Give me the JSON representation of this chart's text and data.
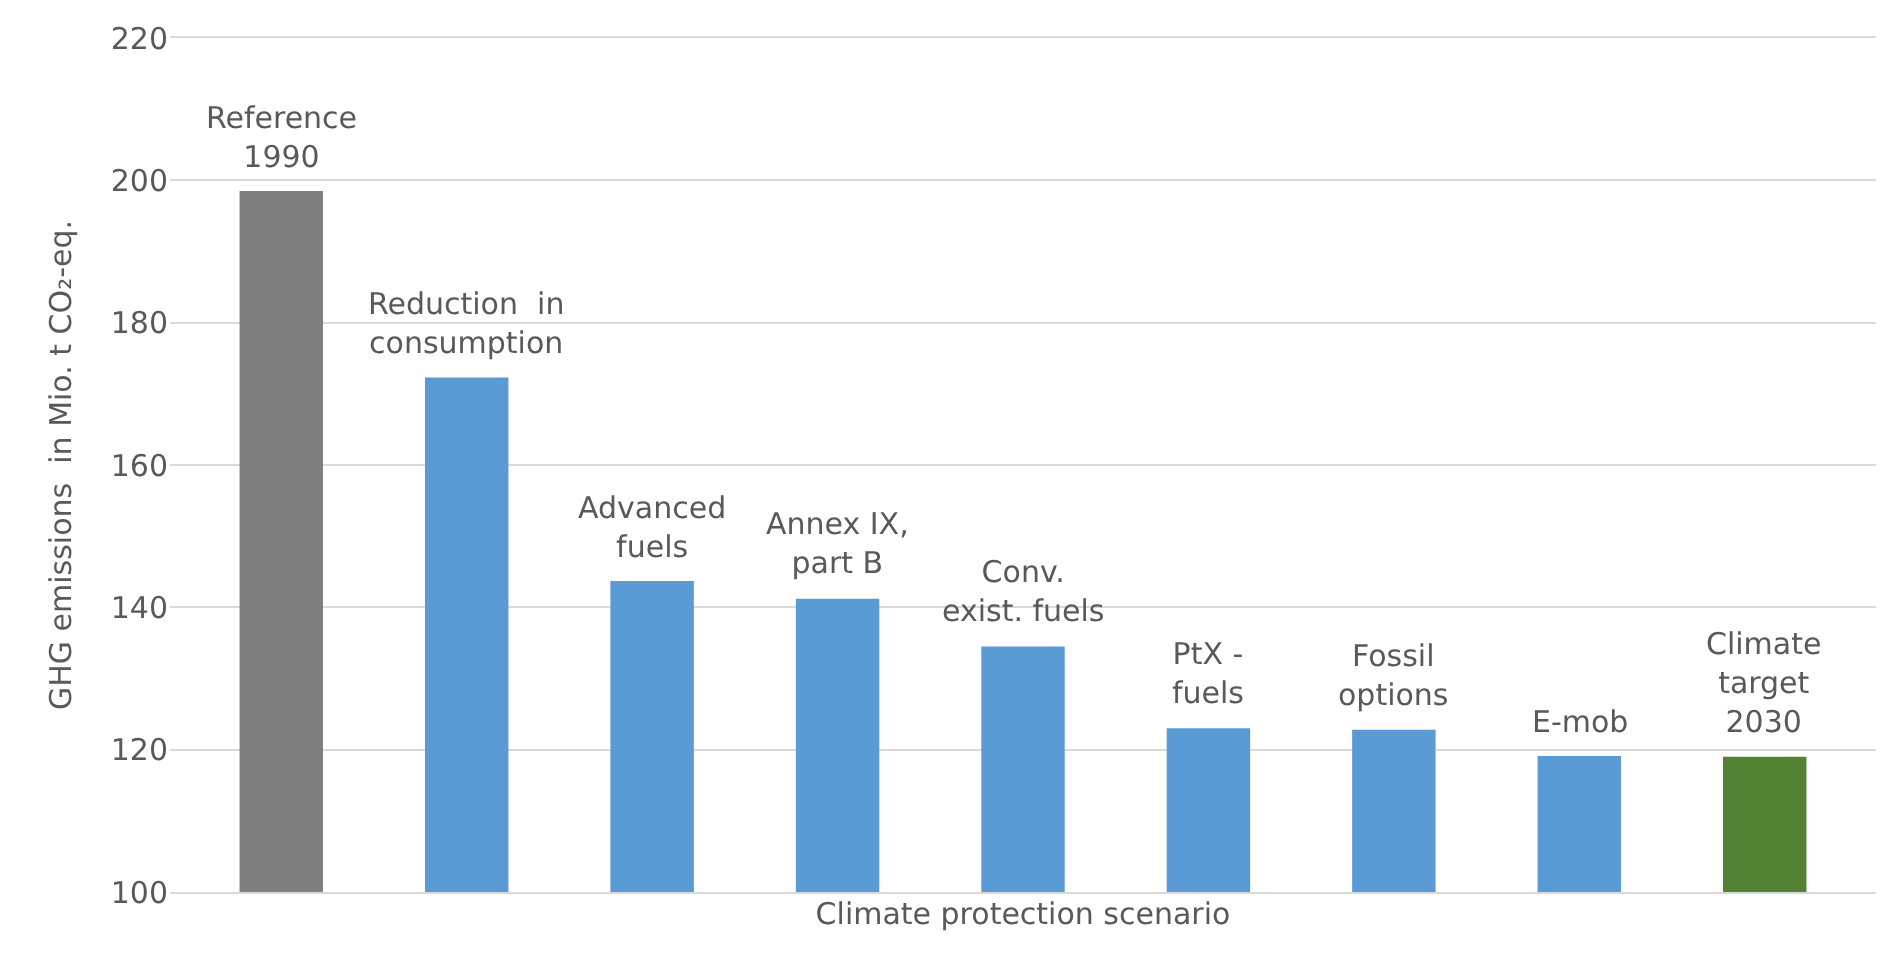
{
  "chart_data": {
    "type": "bar",
    "xlabel": "Climate protection scenario",
    "ylabel": "GHG emissions  in Mio. t CO₂-eq.",
    "categories": [
      "Reference\n1990",
      "Reduction  in\nconsumption",
      "Advanced\nfuels",
      "Annex IX,\npart B",
      "Conv.\nexist. fuels",
      "PtX -\nfuels",
      "Fossil\noptions",
      "E-mob",
      "Climate\ntarget\n2030"
    ],
    "values": [
      198.5,
      172.3,
      143.7,
      141.2,
      134.5,
      123,
      122.8,
      119.1,
      119
    ],
    "colors": [
      "#7f7f7f",
      "#5b9bd5",
      "#5b9bd5",
      "#5b9bd5",
      "#5b9bd5",
      "#5b9bd5",
      "#5b9bd5",
      "#5b9bd5",
      "#548235"
    ],
    "ylim": [
      100,
      220
    ],
    "yticks": [
      100,
      120,
      140,
      160,
      180,
      200,
      220
    ],
    "grid": "y",
    "tick_labels": "y"
  }
}
